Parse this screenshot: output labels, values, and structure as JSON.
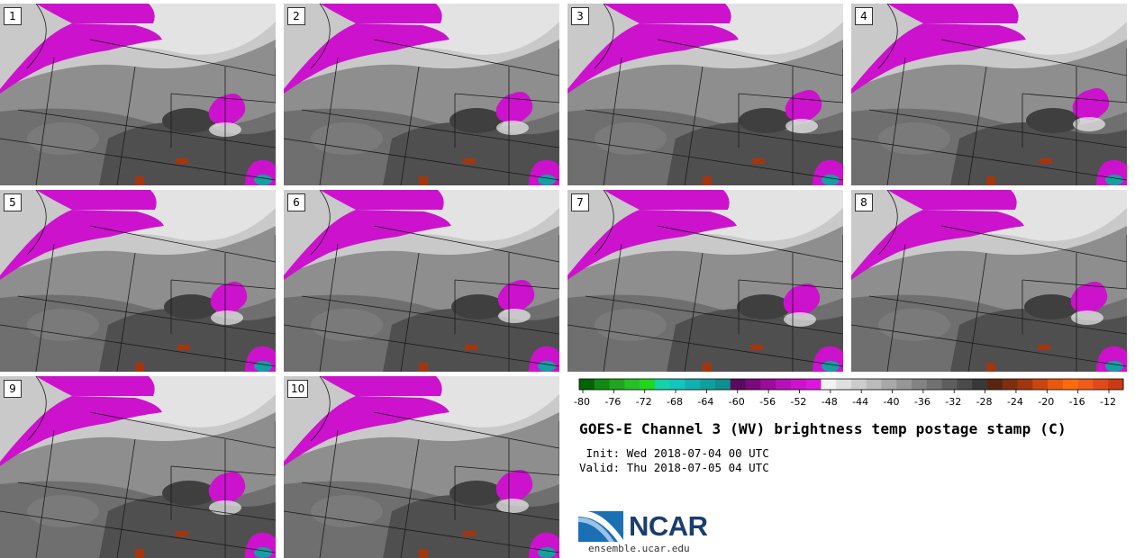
{
  "panels": [
    {
      "label": "1"
    },
    {
      "label": "2"
    },
    {
      "label": "3"
    },
    {
      "label": "4"
    },
    {
      "label": "5"
    },
    {
      "label": "6"
    },
    {
      "label": "7"
    },
    {
      "label": "8"
    },
    {
      "label": "9"
    },
    {
      "label": "10"
    }
  ],
  "colorbar": {
    "ticks": [
      "-80",
      "-76",
      "-72",
      "-68",
      "-64",
      "-60",
      "-56",
      "-52",
      "-48",
      "-44",
      "-40",
      "-36",
      "-32",
      "-28",
      "-24",
      "-20",
      "-16",
      "-12"
    ],
    "colors": [
      "#006400",
      "#128a12",
      "#1fa51f",
      "#26c026",
      "#1ed81e",
      "#13d3a8",
      "#14c4be",
      "#12b0b0",
      "#109f9f",
      "#0e8e8e",
      "#5a0a5a",
      "#7a0a7a",
      "#9b0c9b",
      "#b610b6",
      "#cc12cc",
      "#dd16dd",
      "#f2f2f2",
      "#e0e0e0",
      "#cccccc",
      "#bbbbbb",
      "#a8a8a8",
      "#969696",
      "#838383",
      "#717171",
      "#5e5e5e",
      "#4b4b4b",
      "#383838",
      "#5a2510",
      "#7d2f10",
      "#a3360e",
      "#c9460e",
      "#e8590e",
      "#ff6b0a",
      "#f25a1a",
      "#e04a1a",
      "#cc3a14"
    ]
  },
  "title": "GOES-E Channel 3 (WV) brightness temp postage stamp (C)",
  "init_line": " Init: Wed 2018-07-04 00 UTC",
  "valid_line": "Valid: Thu 2018-07-05 04 UTC",
  "logo": {
    "text": "NCAR",
    "url": "ensemble.ucar.edu"
  },
  "colors": {
    "magenta": "#cc12cc",
    "light_gray": "#d9d9d9",
    "mid_gray": "#9a9a9a",
    "dark_gray": "#555555",
    "orange": "#a3360e",
    "teal": "#14a0a0"
  }
}
